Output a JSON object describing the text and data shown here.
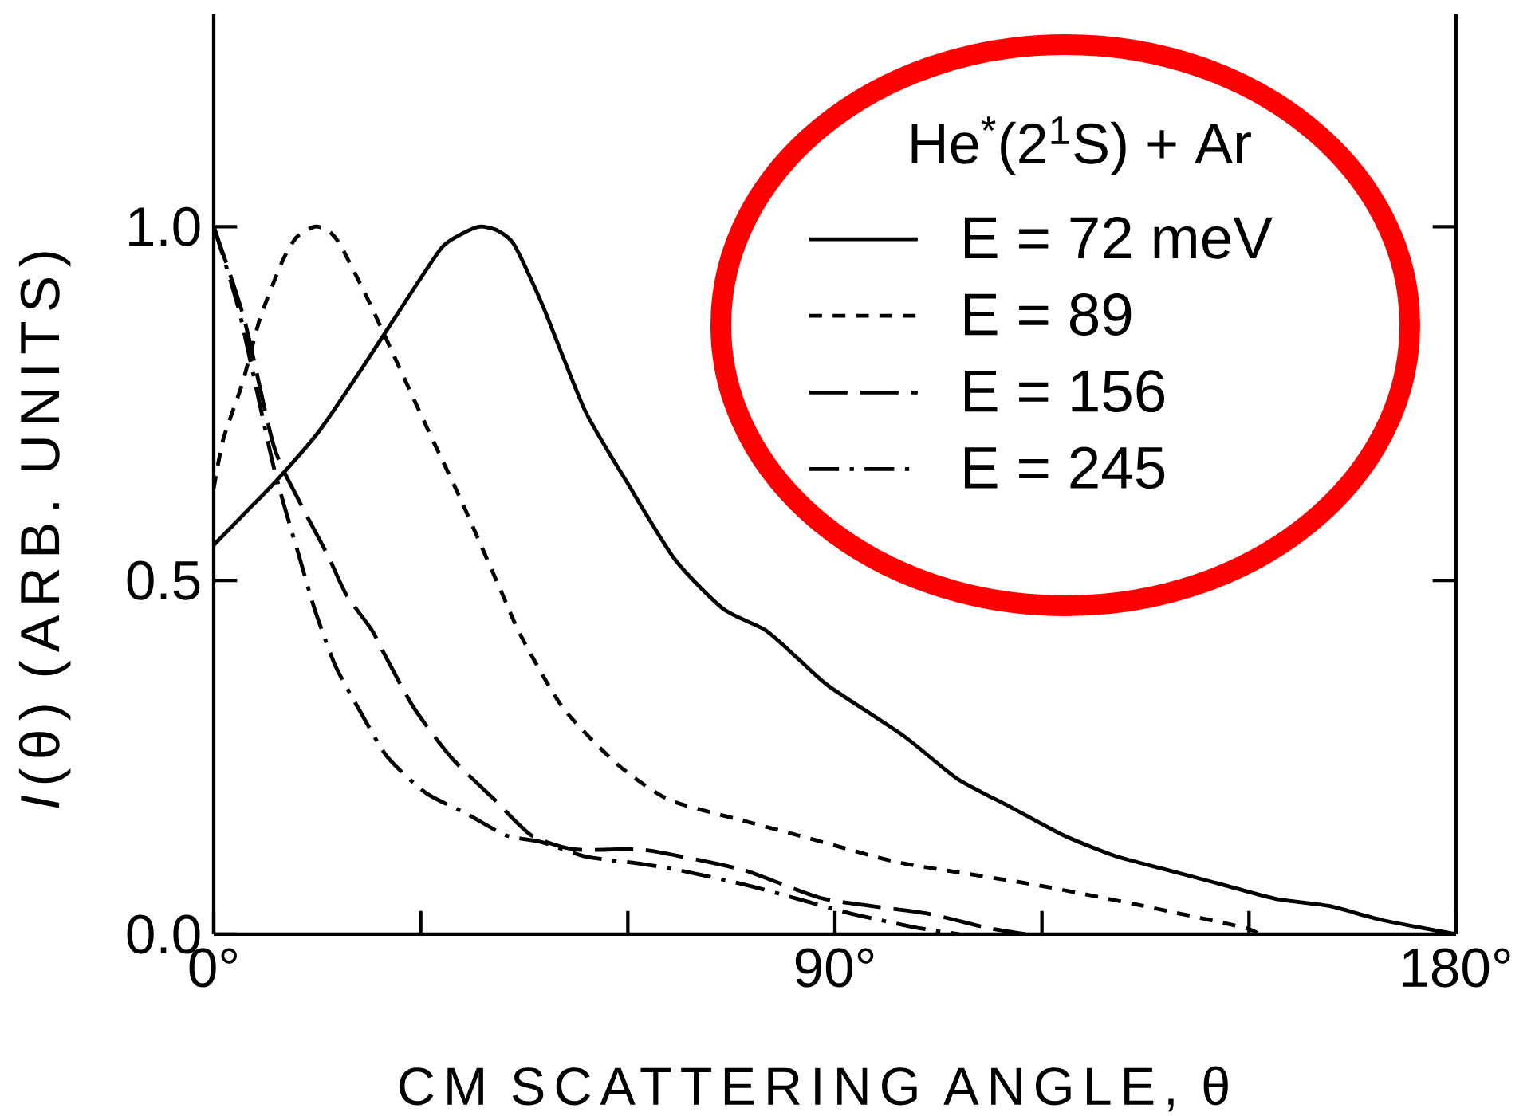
{
  "chart_data": {
    "type": "line",
    "xlabel": "CM SCATTERING ANGLE, θ",
    "ylabel": "*I*(θ) (ARB. UNITS)",
    "legend_title": "He$^{*}$(2$^{1}$S) + Ar",
    "xlim": [
      0,
      180
    ],
    "ylim": [
      0,
      1.3
    ],
    "xticks": [
      {
        "value": 0,
        "label": "0°"
      },
      {
        "value": 30,
        "label": null
      },
      {
        "value": 60,
        "label": null
      },
      {
        "value": 90,
        "label": "90°"
      },
      {
        "value": 120,
        "label": null
      },
      {
        "value": 150,
        "label": null
      },
      {
        "value": 180,
        "label": "180°"
      }
    ],
    "yticks": [
      {
        "value": 0,
        "label": "0.0"
      },
      0.5,
      {
        "value": 1,
        "label": "1.0"
      }
    ],
    "legend": "top right",
    "marker": "none",
    "series": [
      {
        "name": "E = 72 meV",
        "color": "#000000",
        "line_style": "solid",
        "x": [
          0,
          5,
          9,
          15.2,
          21.5,
          27.5,
          33,
          36,
          38.5,
          41,
          43.5,
          47.6,
          53.8,
          59.8,
          66.8,
          73.8,
          79.9,
          84.6,
          89.2,
          100,
          107.7,
          115.4,
          123.1,
          130.8,
          138.5,
          146.2,
          153.9,
          161.6,
          169.3,
          180
        ],
        "values": [
          0.55,
          0.6,
          0.64,
          0.71,
          0.8,
          0.89,
          0.97,
          0.99,
          1.0,
          0.995,
          0.975,
          0.89,
          0.74,
          0.64,
          0.53,
          0.46,
          0.43,
          0.39,
          0.35,
          0.28,
          0.22,
          0.18,
          0.14,
          0.11,
          0.09,
          0.07,
          0.05,
          0.04,
          0.02,
          0
        ]
      },
      {
        "name": "E = 89",
        "color": "#000000",
        "line_style": "dashed",
        "x": [
          0,
          1.4,
          4.2,
          6.7,
          9.9,
          12,
          14.6,
          16.5,
          18.3,
          22.2,
          26,
          30.7,
          36,
          41.4,
          44.6,
          50.6,
          58.5,
          66,
          76.9,
          84.6,
          92,
          100,
          119,
          134.7,
          149,
          151.5
        ],
        "values": [
          0.63,
          0.7,
          0.78,
          0.87,
          0.95,
          0.985,
          1.0,
          0.995,
          0.975,
          0.9,
          0.82,
          0.72,
          0.61,
          0.49,
          0.42,
          0.32,
          0.24,
          0.19,
          0.16,
          0.14,
          0.12,
          0.1,
          0.07,
          0.04,
          0.01,
          0
        ]
      },
      {
        "name": "E = 156",
        "color": "#000000",
        "line_style": "longdashed",
        "x": [
          0,
          4.4,
          8.7,
          12.5,
          15.2,
          16.8,
          19.2,
          22.9,
          24.5,
          29,
          34.4,
          40.7,
          46,
          52.2,
          61.5,
          67.7,
          77,
          88.5,
          103,
          111.6,
          117.6
        ],
        "values": [
          1.0,
          0.87,
          0.69,
          0.61,
          0.56,
          0.53,
          0.48,
          0.43,
          0.4,
          0.32,
          0.25,
          0.19,
          0.14,
          0.12,
          0.12,
          0.11,
          0.09,
          0.05,
          0.03,
          0.01,
          0
        ]
      },
      {
        "name": "E = 245",
        "color": "#000000",
        "line_style": "dashdot",
        "x": [
          0,
          3.7,
          8.7,
          12.5,
          14.6,
          17.6,
          21.5,
          25.2,
          30.7,
          36.7,
          42.3,
          47.6,
          53.8,
          61.5,
          67.7,
          77,
          84.6,
          92,
          101.4,
          108
        ],
        "values": [
          1.0,
          0.88,
          0.66,
          0.53,
          0.46,
          0.38,
          0.31,
          0.25,
          0.2,
          0.17,
          0.14,
          0.13,
          0.11,
          0.1,
          0.09,
          0.07,
          0.05,
          0.03,
          0.01,
          0
        ]
      }
    ]
  }
}
